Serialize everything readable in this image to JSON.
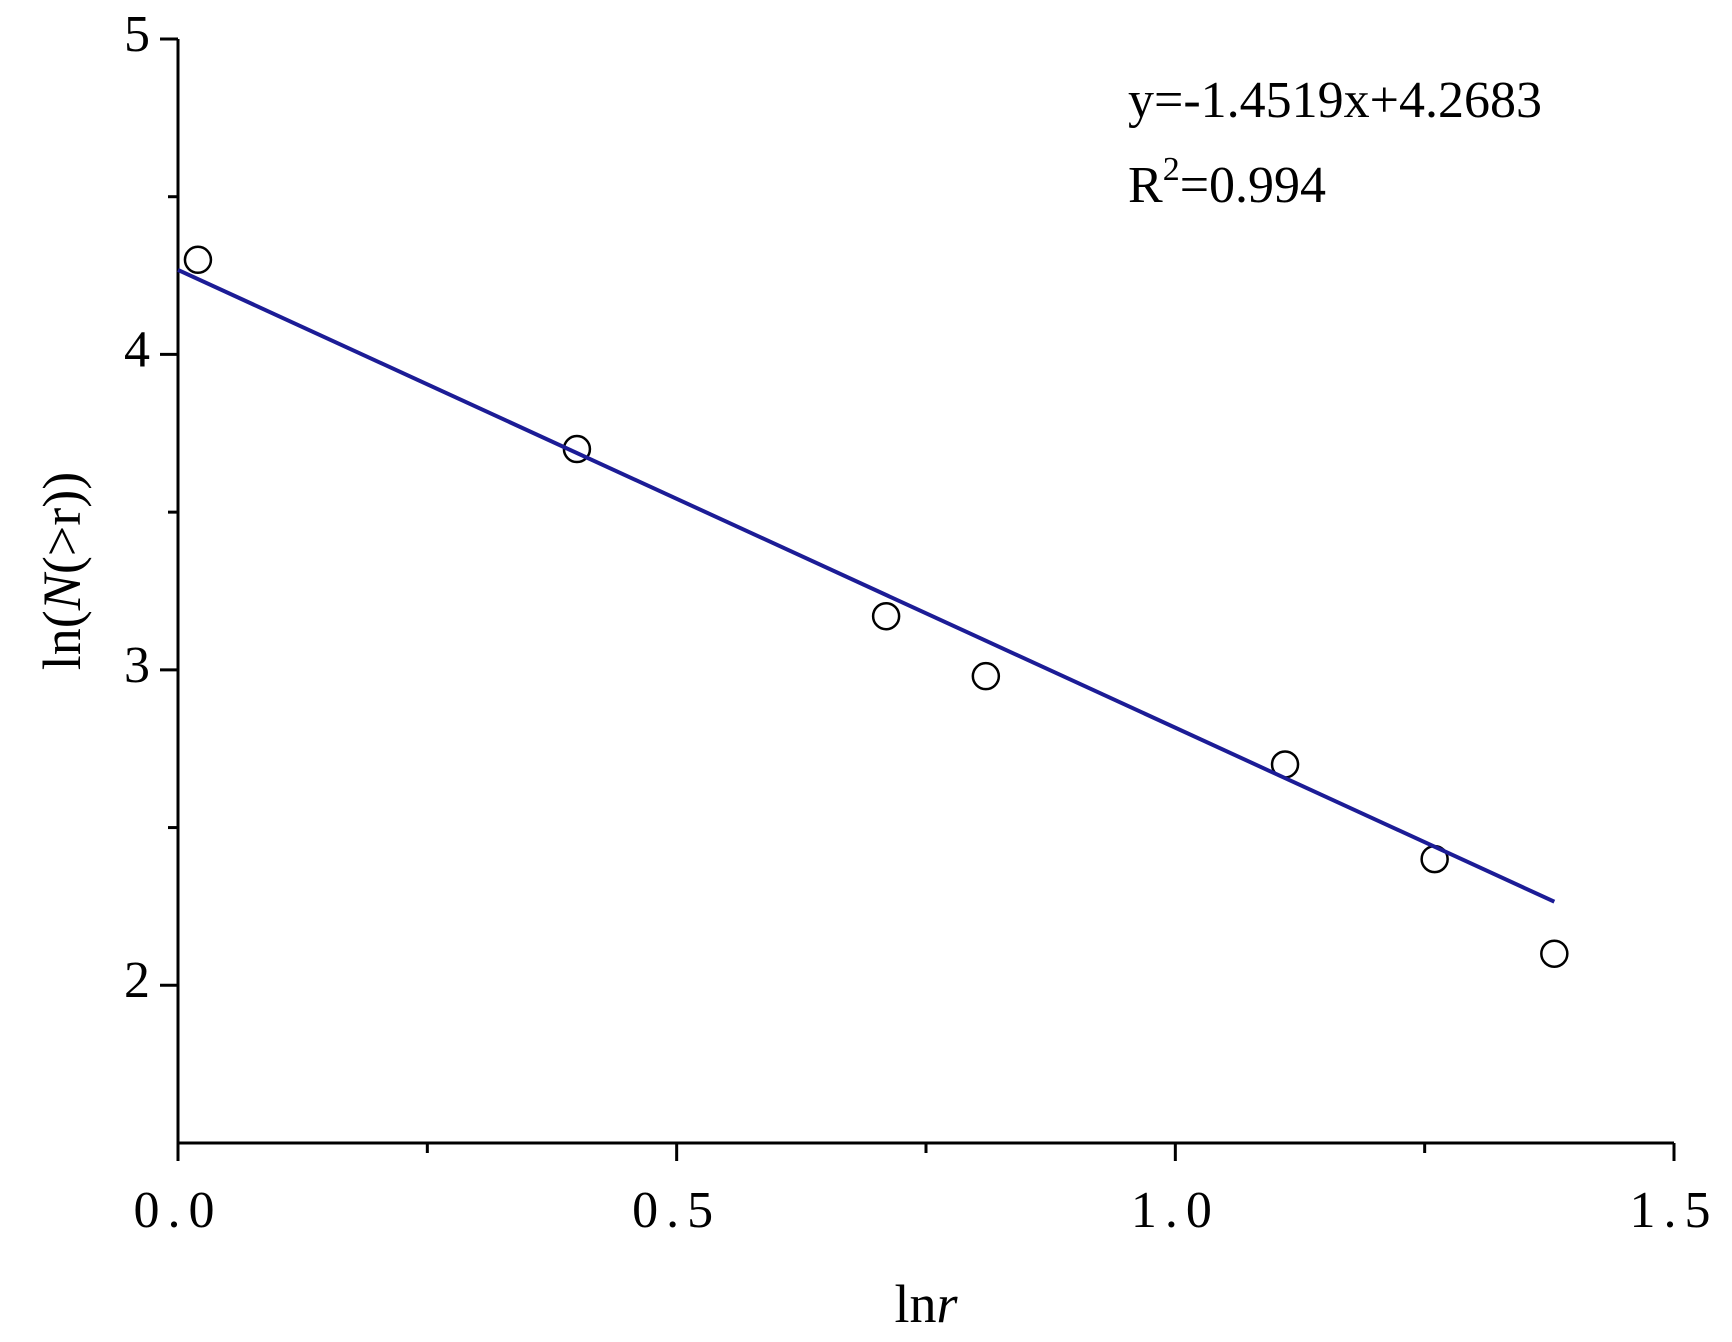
{
  "chart_data": {
    "type": "scatter",
    "x_label_parts": [
      {
        "text": "ln",
        "italic": false
      },
      {
        "text": "r",
        "italic": true
      }
    ],
    "y_label_parts": [
      {
        "text": "ln(",
        "italic": false
      },
      {
        "text": "N",
        "italic": true
      },
      {
        "text": "(>r))",
        "italic": false
      }
    ],
    "annotations": [
      "y=-1.4519x+4.2683",
      {
        "base": "R",
        "sup": "2",
        "rest": "=0.994"
      }
    ],
    "xlim": [
      0,
      1.5
    ],
    "ylim": [
      1.5,
      5
    ],
    "xticks": [
      {
        "value": 0,
        "label": "0.0"
      },
      0.5,
      {
        "value": 1,
        "label": "1.0"
      },
      1.5
    ],
    "xminorticks": [
      0.25,
      0.75,
      1.25
    ],
    "yticks": [
      2,
      3,
      4,
      5
    ],
    "yminorticks": [
      2.5,
      3.5,
      4.5
    ],
    "series": [
      {
        "kind": "points",
        "color": "#000000",
        "x": [
          0.02,
          0.4,
          0.71,
          0.81,
          1.11,
          1.26,
          1.38
        ],
        "values": [
          4.3,
          3.7,
          3.17,
          2.98,
          2.7,
          2.4,
          2.1
        ]
      },
      {
        "kind": "line",
        "color": "#1c1c96",
        "x": [
          0,
          1.38
        ],
        "values": [
          4.268,
          2.265
        ]
      }
    ]
  }
}
